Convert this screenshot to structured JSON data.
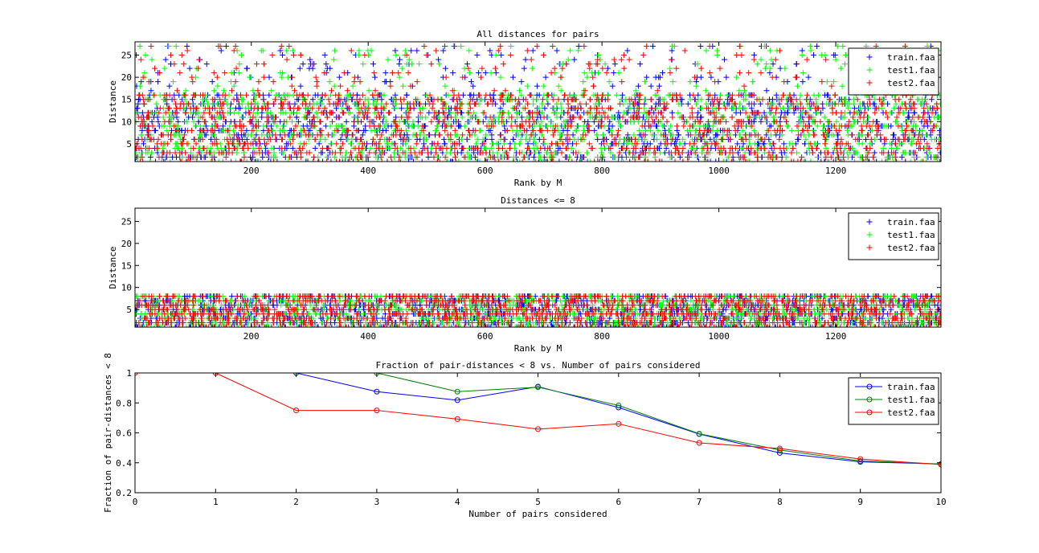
{
  "chart_data": [
    {
      "type": "scatter",
      "title": "All distances for pairs",
      "xlabel": "Rank by M",
      "ylabel": "Distance",
      "xlim": [
        1,
        1380
      ],
      "ylim": [
        1,
        28
      ],
      "xticks": [
        200,
        400,
        600,
        800,
        1000,
        1200
      ],
      "yticks": [
        5,
        10,
        15,
        20,
        25
      ],
      "marker": "+",
      "legend": "top-right",
      "point_count_per_series": 1380,
      "distance_range": [
        1,
        28
      ],
      "series": [
        {
          "name": "train.faa",
          "color": "#0000ff"
        },
        {
          "name": "test1.faa",
          "color": "#00ff00"
        },
        {
          "name": "test2.faa",
          "color": "#ff0000"
        }
      ]
    },
    {
      "type": "scatter",
      "title": "Distances <= 8",
      "xlabel": "Rank by M",
      "ylabel": "Distance",
      "xlim": [
        1,
        1380
      ],
      "ylim": [
        1,
        28
      ],
      "xticks": [
        200,
        400,
        600,
        800,
        1000,
        1200
      ],
      "yticks": [
        5,
        10,
        15,
        20,
        25
      ],
      "marker": "+",
      "legend": "top-right",
      "point_count_per_series": 1380,
      "distance_range": [
        1,
        8
      ],
      "series": [
        {
          "name": "train.faa",
          "color": "#0000ff"
        },
        {
          "name": "test1.faa",
          "color": "#00ff00"
        },
        {
          "name": "test2.faa",
          "color": "#ff0000"
        }
      ]
    },
    {
      "type": "line",
      "title": "Fraction of pair-distances < 8 vs. Number of pairs considered",
      "xlabel": "Number of pairs considered",
      "ylabel": "Fraction of pair-distances < 8",
      "xlim": [
        0,
        10
      ],
      "ylim": [
        0.2,
        1
      ],
      "xticks": [
        0,
        1,
        2,
        3,
        4,
        5,
        6,
        7,
        8,
        9,
        10
      ],
      "yticks": [
        0.2,
        0.4,
        0.6,
        0.8,
        1
      ],
      "ytick_labels": [
        "0.2",
        "0.4",
        "0.6",
        "0.8",
        "1"
      ],
      "marker": "o",
      "legend": "top-right",
      "series": [
        {
          "name": "train.faa",
          "color": "#0000ff",
          "x": [
            2,
            3,
            4,
            5,
            6,
            7,
            8,
            9,
            10
          ],
          "values": [
            1.0,
            0.875,
            0.818,
            0.909,
            0.769,
            0.592,
            0.466,
            0.406,
            0.392
          ]
        },
        {
          "name": "test1.faa",
          "color": "#008000",
          "x": [
            2,
            3,
            4,
            5,
            6,
            7,
            8,
            9,
            10
          ],
          "values": [
            1.0,
            1.0,
            0.875,
            0.905,
            0.783,
            0.594,
            0.485,
            0.412,
            0.392
          ]
        },
        {
          "name": "test2.faa",
          "color": "#ff0000",
          "x": [
            0,
            1,
            2,
            3,
            4,
            5,
            6,
            7,
            8,
            9,
            10
          ],
          "values": [
            1.0,
            1.0,
            0.75,
            0.75,
            0.692,
            0.625,
            0.66,
            0.533,
            0.495,
            0.425,
            0.388
          ]
        }
      ]
    }
  ]
}
